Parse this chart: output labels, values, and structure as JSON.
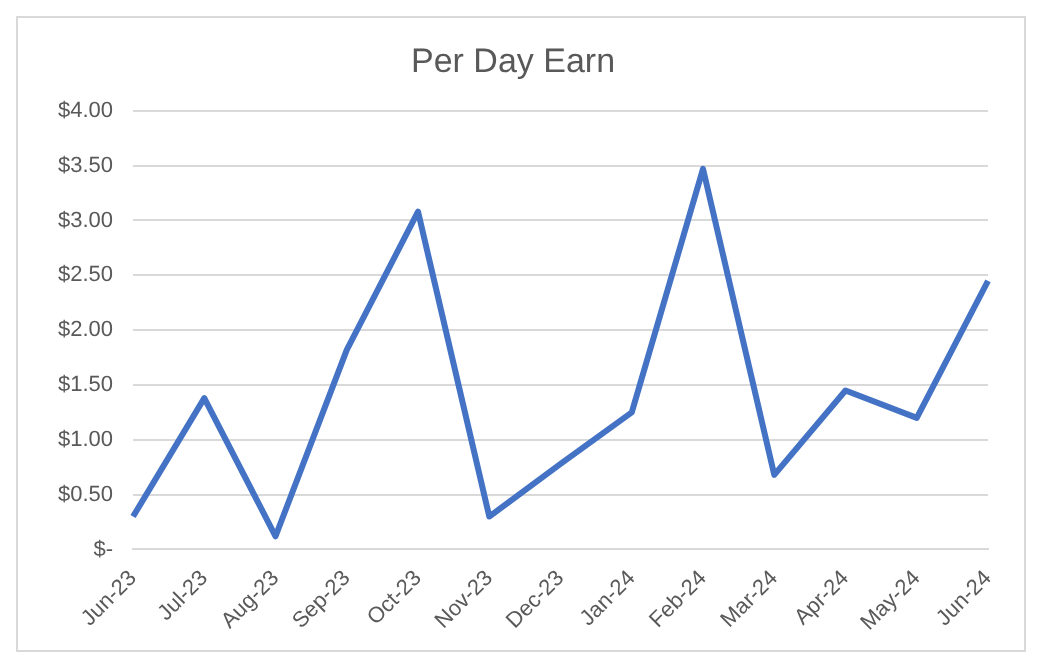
{
  "chart_data": {
    "type": "line",
    "title": "Per Day Earn",
    "categories": [
      "Jun-23",
      "Jul-23",
      "Aug-23",
      "Sep-23",
      "Oct-23",
      "Nov-23",
      "Dec-23",
      "Jan-24",
      "Feb-24",
      "Mar-24",
      "Apr-24",
      "May-24",
      "Jun-24"
    ],
    "series": [
      {
        "color": "#4472c4",
        "values": [
          0.3,
          1.38,
          0.12,
          1.82,
          3.08,
          0.3,
          0.78,
          1.25,
          3.47,
          0.68,
          1.45,
          1.2,
          2.45
        ]
      }
    ],
    "ylim": [
      0,
      4
    ],
    "yticks": [
      {
        "value": 0,
        "label": "$-"
      },
      {
        "value": 0.5,
        "label": "$0.50"
      },
      {
        "value": 1,
        "label": "$1.00"
      },
      {
        "value": 1.5,
        "label": "$1.50"
      },
      {
        "value": 2,
        "label": "$2.00"
      },
      {
        "value": 2.5,
        "label": "$2.50"
      },
      {
        "value": 3,
        "label": "$3.00"
      },
      {
        "value": 3.5,
        "label": "$3.50"
      },
      {
        "value": 4,
        "label": "$4.00"
      }
    ],
    "grid": "y",
    "legend": false,
    "marker": "none",
    "line_style": "solid"
  }
}
